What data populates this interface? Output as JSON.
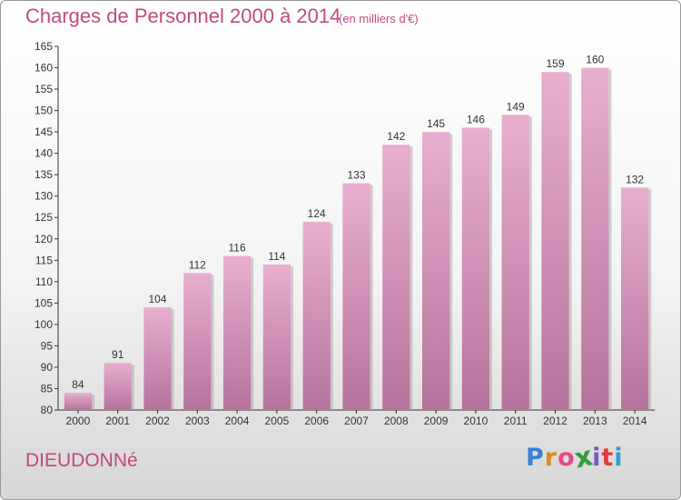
{
  "header": {
    "title": "Charges de Personnel 2000 à 2014",
    "unit": "(en milliers d'€)"
  },
  "footer": {
    "commune": "DIEUDONNé",
    "logo": [
      "P",
      "r",
      "o",
      "x",
      "i",
      "t",
      "i"
    ],
    "logo_colors": [
      "#3b7fd1",
      "#e08a1e",
      "#e34a8b",
      "#2f9e3a",
      "#7b57c8",
      "#e03c3c",
      "#2e9fd6"
    ]
  },
  "colors": {
    "bar_top": "#e8aed0",
    "bar_bottom": "#b5739c",
    "bar_shadow": "#a9a9a9",
    "accent": "#c24a80"
  },
  "chart_data": {
    "type": "bar",
    "title": "Charges de Personnel 2000 à 2014",
    "subtitle": "(en milliers d'€)",
    "xlabel": "",
    "ylabel": "",
    "categories": [
      "2000",
      "2001",
      "2002",
      "2003",
      "2004",
      "2005",
      "2006",
      "2007",
      "2008",
      "2009",
      "2010",
      "2011",
      "2012",
      "2013",
      "2014"
    ],
    "values": [
      84,
      91,
      104,
      112,
      116,
      114,
      124,
      133,
      142,
      145,
      146,
      149,
      159,
      160,
      132
    ],
    "ylim": [
      80,
      165
    ],
    "yticks": [
      80,
      85,
      90,
      95,
      100,
      105,
      110,
      115,
      120,
      125,
      130,
      135,
      140,
      145,
      150,
      155,
      160,
      165
    ],
    "grid": false,
    "legend": "none"
  }
}
